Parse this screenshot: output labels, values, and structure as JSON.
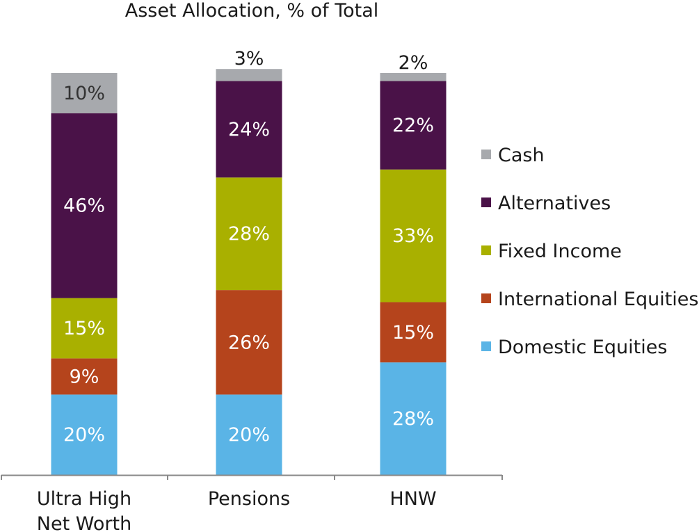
{
  "chart_data": {
    "type": "bar",
    "stacked": true,
    "title": "Asset Allocation, % of Total",
    "xlabel": "",
    "ylabel": "",
    "ylim": [
      0,
      100
    ],
    "grid": false,
    "legend_position": "right",
    "categories": [
      [
        "Ultra High",
        "Net Worth"
      ],
      [
        "Pensions"
      ],
      [
        "HNW"
      ]
    ],
    "series": [
      {
        "name": "Domestic Equities",
        "color": "#5ab4e6",
        "label_color": "#ffffff",
        "values": [
          20,
          20,
          28
        ],
        "labels": [
          "20%",
          "20%",
          "28%"
        ]
      },
      {
        "name": "International Equities",
        "color": "#b5441c",
        "label_color": "#ffffff",
        "values": [
          9,
          26,
          15
        ],
        "labels": [
          "9%",
          "26%",
          "15%"
        ]
      },
      {
        "name": "Fixed Income",
        "color": "#a9b000",
        "label_color": "#ffffff",
        "values": [
          15,
          28,
          33
        ],
        "labels": [
          "15%",
          "28%",
          "33%"
        ]
      },
      {
        "name": "Alternatives",
        "color": "#4a1248",
        "label_color": "#ffffff",
        "values": [
          46,
          24,
          22
        ],
        "labels": [
          "46%",
          "24%",
          "22%"
        ]
      },
      {
        "name": "Cash",
        "color": "#a7a9ad",
        "label_color": "#333333",
        "values": [
          10,
          3,
          2
        ],
        "labels": [
          "10%",
          "3%",
          "2%"
        ]
      }
    ],
    "legend_order": [
      "Cash",
      "Alternatives",
      "Fixed Income",
      "International Equities",
      "Domestic Equities"
    ]
  }
}
